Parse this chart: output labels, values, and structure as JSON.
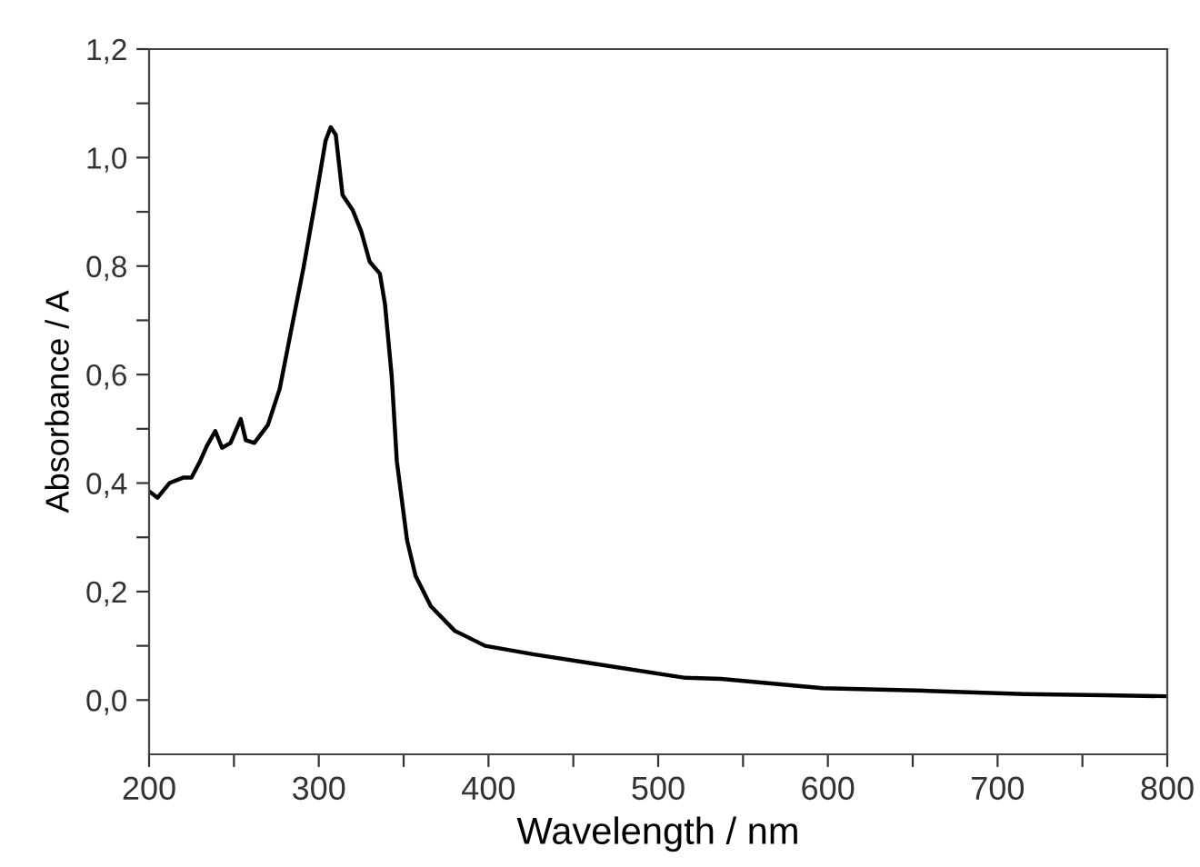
{
  "chart_data": {
    "type": "line",
    "xlabel": "Wavelength / nm",
    "ylabel": "Absorbance / A",
    "xlim": [
      200,
      800
    ],
    "ylim": [
      -0.1,
      1.2
    ],
    "xticks": [
      200,
      {
        "value": 250,
        "label": null
      },
      300,
      {
        "value": 350,
        "label": null
      },
      400,
      {
        "value": 450,
        "label": null
      },
      500,
      {
        "value": 550,
        "label": null
      },
      600,
      {
        "value": 650,
        "label": null
      },
      700,
      {
        "value": 750,
        "label": null
      },
      800
    ],
    "yticks": [
      {
        "value": 0.0,
        "label": "0,0"
      },
      {
        "value": 0.1,
        "label": null
      },
      {
        "value": 0.2,
        "label": "0,2"
      },
      {
        "value": 0.3,
        "label": null
      },
      {
        "value": 0.4,
        "label": "0,4"
      },
      {
        "value": 0.5,
        "label": null
      },
      {
        "value": 0.6,
        "label": "0,6"
      },
      {
        "value": 0.7,
        "label": null
      },
      {
        "value": 0.8,
        "label": "0,8"
      },
      {
        "value": 0.9,
        "label": null
      },
      {
        "value": 1.0,
        "label": "1,0"
      },
      {
        "value": 1.1,
        "label": null
      },
      {
        "value": 1.2,
        "label": "1,2"
      }
    ],
    "grid": false,
    "marker": "none",
    "line_style": "solid",
    "series": [
      {
        "color": "#000000",
        "x": [
          200,
          205,
          212,
          220,
          225,
          230,
          234,
          239,
          243,
          248,
          254,
          257,
          262,
          270,
          277,
          284,
          291,
          298,
          304,
          307,
          310,
          314,
          320,
          325,
          330,
          336,
          339,
          343,
          346,
          352,
          357,
          366,
          380,
          398,
          427,
          462,
          516,
          537,
          597,
          659,
          716,
          763,
          800
        ],
        "values": [
          0.385,
          0.373,
          0.4,
          0.41,
          0.41,
          0.44,
          0.468,
          0.496,
          0.465,
          0.474,
          0.518,
          0.479,
          0.474,
          0.507,
          0.574,
          0.686,
          0.797,
          0.92,
          1.031,
          1.056,
          1.042,
          0.931,
          0.903,
          0.864,
          0.808,
          0.786,
          0.73,
          0.596,
          0.44,
          0.295,
          0.229,
          0.173,
          0.128,
          0.1,
          0.084,
          0.067,
          0.041,
          0.039,
          0.022,
          0.017,
          0.011,
          0.009,
          0.007
        ]
      }
    ]
  }
}
